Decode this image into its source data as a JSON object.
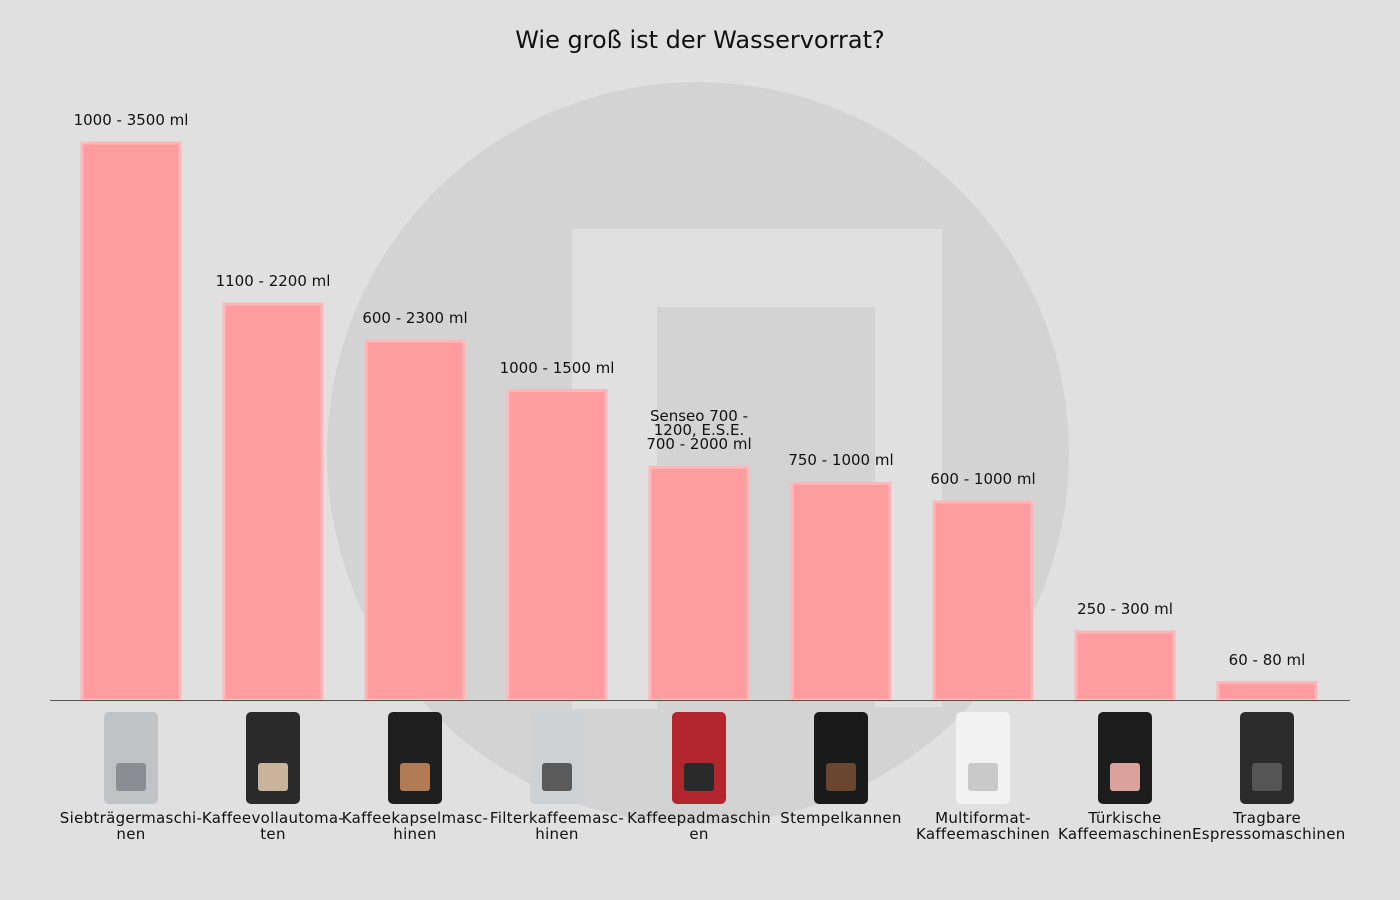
{
  "chart_data": {
    "type": "bar",
    "title": "Wie groß ist der Wasservorrat?",
    "categories": [
      [
        "Siebträgermaschi-",
        "nen"
      ],
      [
        "Kaffeevollautoma-",
        "ten"
      ],
      [
        "Kaffeekapselmasc-",
        "hinen"
      ],
      [
        "Filterkaffeemasc-",
        "hinen"
      ],
      [
        "Kaffeepadmaschin",
        "en"
      ],
      [
        "Stempelkannen"
      ],
      [
        "Multiformat-",
        "Kaffeemaschinen"
      ],
      [
        "Türkische",
        "Kaffeemaschinen"
      ],
      [
        "Tragbare",
        "Espressomaschinen"
      ]
    ],
    "values": [
      2250,
      1600,
      1450,
      1250,
      940,
      875,
      800,
      275,
      70
    ],
    "data_labels": [
      "1000 - 3500 ml",
      "1100 - 2200 ml",
      "600 - 2300 ml",
      "1000 - 1500 ml",
      "Senseo 700 - 1200, E.S.E. 700 - 2000 ml",
      "750 - 1000 ml",
      "600 - 1000 ml",
      "250 - 300 ml",
      "60 - 80 ml"
    ],
    "xlabel": "",
    "ylabel": "",
    "ylim": [
      0,
      2250
    ],
    "grid": false,
    "legend": "none",
    "bar_color": "#ff9ca0",
    "background": "#e0e0e0"
  }
}
